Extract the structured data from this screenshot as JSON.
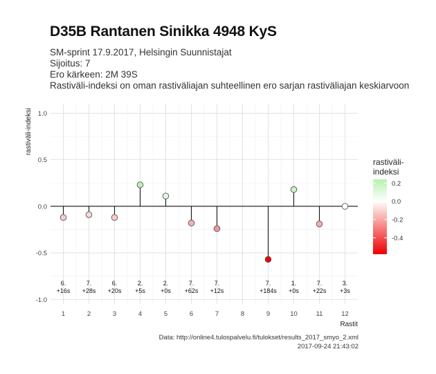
{
  "title": "D35B Rantanen Sinikka 4948 KyS",
  "subtitle_lines": [
    "SM-sprint 17.9.2017, Helsingin Suunnistajat",
    "Sijoitus: 7",
    "Ero kärkeen: 2M 39S",
    "Rastiväli-indeksi on oman rastiväliajan suhteellinen ero sarjan rastiväliajan keskiarvoon"
  ],
  "caption": {
    "source": "Data: http://online4.tulospalvelu.fi/tulokset/results_2017_smyo_2.xml",
    "timestamp": "2017-09-24 21:43:02"
  },
  "chart_data": {
    "type": "scatter",
    "style": "lollipop",
    "xlabel": "Rastit",
    "ylabel": "rastiväli-indeksi",
    "xlim": [
      0.5,
      12.5
    ],
    "ylim": [
      -1.05,
      1.1
    ],
    "x_ticks": [
      1,
      2,
      3,
      4,
      5,
      6,
      7,
      8,
      9,
      10,
      11,
      12
    ],
    "y_ticks": [
      -1.0,
      -0.5,
      0.0,
      0.5,
      1.0
    ],
    "y_tick_labels": [
      "-1.0",
      "-0.5",
      "0.0",
      "0.5",
      "1.0"
    ],
    "grid": true,
    "points": [
      {
        "x": 1,
        "y": -0.12,
        "place": "6.",
        "diff": "+16s"
      },
      {
        "x": 2,
        "y": -0.09,
        "place": "7.",
        "diff": "+28s"
      },
      {
        "x": 3,
        "y": -0.12,
        "place": "6.",
        "diff": "+20s"
      },
      {
        "x": 4,
        "y": 0.23,
        "place": "2.",
        "diff": "+5s"
      },
      {
        "x": 5,
        "y": 0.11,
        "place": "2.",
        "diff": "+0s"
      },
      {
        "x": 6,
        "y": -0.18,
        "place": "7.",
        "diff": "+62s"
      },
      {
        "x": 7,
        "y": -0.24,
        "place": "7.",
        "diff": "+12s"
      },
      {
        "x": 9,
        "y": -0.57,
        "place": "7.",
        "diff": "+184s"
      },
      {
        "x": 10,
        "y": 0.18,
        "place": "1.",
        "diff": "+0s"
      },
      {
        "x": 11,
        "y": -0.19,
        "place": "7.",
        "diff": "+22s"
      },
      {
        "x": 12,
        "y": 0.0,
        "place": "3.",
        "diff": "+3s"
      }
    ],
    "colorbar": {
      "title_lines": [
        "rastiväli-",
        "indeksi"
      ],
      "ticks": [
        0.2,
        0.0,
        -0.2,
        -0.4
      ],
      "tick_labels": [
        "0.2",
        "0.0",
        "-0.2",
        "-0.4"
      ],
      "range": [
        -0.58,
        0.24
      ],
      "low_color": "#ee0000",
      "mid_color": "#ffffff",
      "high_color": "#b8f0b0"
    }
  }
}
